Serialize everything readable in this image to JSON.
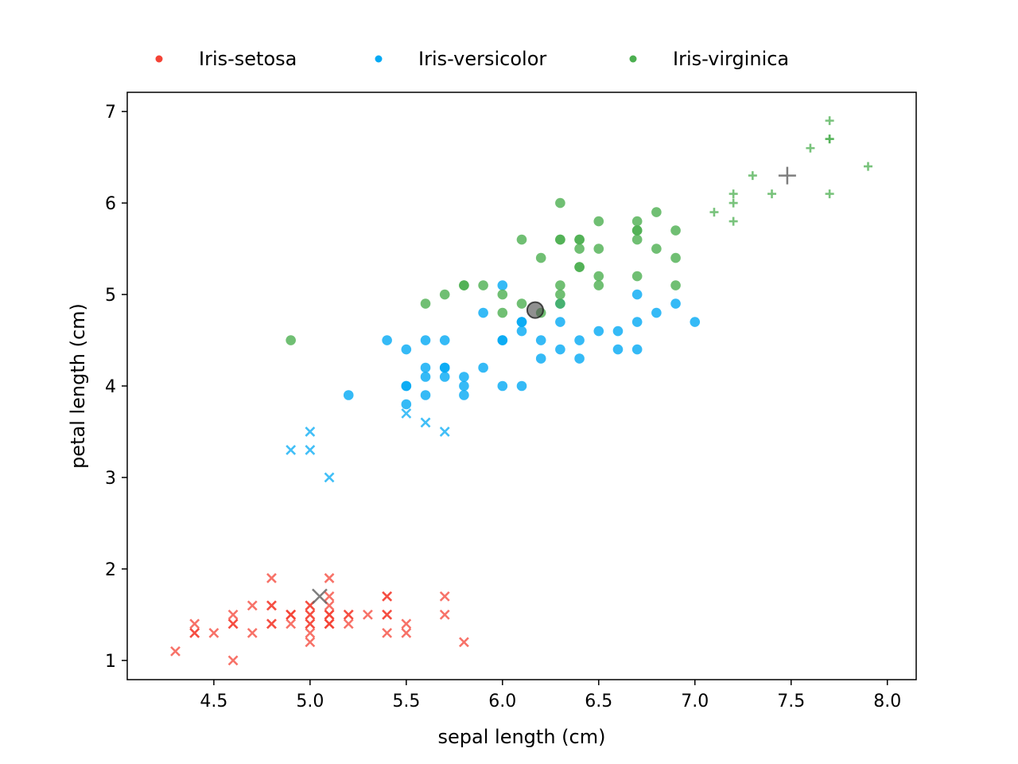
{
  "chart_data": {
    "type": "scatter",
    "xlabel": "sepal length (cm)",
    "ylabel": "petal length (cm)",
    "xlim": [
      4.05,
      8.15
    ],
    "ylim": [
      0.79,
      7.21
    ],
    "x_ticks": [
      4.5,
      5.0,
      5.5,
      6.0,
      6.5,
      7.0,
      7.5,
      8.0
    ],
    "x_tick_labels": [
      "4.5",
      "5.0",
      "5.5",
      "6.0",
      "6.5",
      "7.0",
      "7.5",
      "8.0"
    ],
    "y_ticks": [
      1,
      2,
      3,
      4,
      5,
      6,
      7
    ],
    "y_tick_labels": [
      "1",
      "2",
      "3",
      "4",
      "5",
      "6",
      "7"
    ],
    "grid": false,
    "legend_position": "top",
    "legend": [
      {
        "label": "Iris-setosa",
        "color": "#f44336"
      },
      {
        "label": "Iris-versicolor",
        "color": "#03a9f4"
      },
      {
        "label": "Iris-virginica",
        "color": "#4caf50"
      }
    ],
    "series": [
      {
        "name": "Iris-setosa",
        "color": "#f44336",
        "marker": "x",
        "points": [
          [
            4.3,
            1.1
          ],
          [
            4.4,
            1.4
          ],
          [
            4.4,
            1.3
          ],
          [
            4.4,
            1.3
          ],
          [
            4.5,
            1.3
          ],
          [
            4.6,
            1.0
          ],
          [
            4.6,
            1.4
          ],
          [
            4.6,
            1.5
          ],
          [
            4.6,
            1.4
          ],
          [
            4.7,
            1.6
          ],
          [
            4.7,
            1.3
          ],
          [
            4.8,
            1.9
          ],
          [
            4.8,
            1.6
          ],
          [
            4.8,
            1.4
          ],
          [
            4.8,
            1.6
          ],
          [
            4.8,
            1.4
          ],
          [
            4.9,
            1.5
          ],
          [
            4.9,
            1.4
          ],
          [
            4.9,
            1.5
          ],
          [
            4.9,
            1.5
          ],
          [
            5.0,
            1.6
          ],
          [
            5.0,
            1.5
          ],
          [
            5.0,
            1.4
          ],
          [
            5.0,
            1.3
          ],
          [
            5.0,
            1.2
          ],
          [
            5.0,
            1.6
          ],
          [
            5.0,
            1.4
          ],
          [
            5.0,
            1.5
          ],
          [
            5.1,
            1.9
          ],
          [
            5.1,
            1.7
          ],
          [
            5.1,
            1.6
          ],
          [
            5.1,
            1.5
          ],
          [
            5.1,
            1.5
          ],
          [
            5.1,
            1.4
          ],
          [
            5.1,
            1.4
          ],
          [
            5.1,
            1.5
          ],
          [
            5.1,
            1.4
          ],
          [
            5.2,
            1.5
          ],
          [
            5.2,
            1.4
          ],
          [
            5.2,
            1.5
          ],
          [
            5.3,
            1.5
          ],
          [
            5.4,
            1.7
          ],
          [
            5.4,
            1.5
          ],
          [
            5.4,
            1.3
          ],
          [
            5.4,
            1.7
          ],
          [
            5.4,
            1.5
          ],
          [
            5.5,
            1.4
          ],
          [
            5.5,
            1.3
          ],
          [
            5.7,
            1.7
          ],
          [
            5.7,
            1.5
          ],
          [
            5.8,
            1.2
          ]
        ]
      },
      {
        "name": "Iris-versicolor",
        "color": "#03a9f4",
        "marker": "mixed",
        "points_x": [
          [
            4.9,
            3.3
          ],
          [
            5.0,
            3.5
          ],
          [
            5.0,
            3.3
          ],
          [
            5.1,
            3.0
          ],
          [
            5.5,
            3.7
          ],
          [
            5.6,
            3.6
          ],
          [
            5.7,
            3.5
          ]
        ],
        "points_o": [
          [
            5.2,
            3.9
          ],
          [
            5.4,
            4.5
          ],
          [
            5.5,
            4.4
          ],
          [
            5.5,
            4.0
          ],
          [
            5.5,
            4.0
          ],
          [
            5.5,
            3.8
          ],
          [
            5.6,
            4.5
          ],
          [
            5.6,
            4.2
          ],
          [
            5.6,
            4.1
          ],
          [
            5.6,
            3.9
          ],
          [
            5.7,
            4.5
          ],
          [
            5.7,
            4.2
          ],
          [
            5.7,
            4.2
          ],
          [
            5.7,
            4.1
          ],
          [
            5.8,
            4.1
          ],
          [
            5.8,
            4.0
          ],
          [
            5.8,
            3.9
          ],
          [
            5.9,
            4.8
          ],
          [
            5.9,
            4.2
          ],
          [
            6.0,
            5.1
          ],
          [
            6.0,
            4.5
          ],
          [
            6.0,
            4.5
          ],
          [
            6.0,
            4.0
          ],
          [
            6.1,
            4.7
          ],
          [
            6.1,
            4.7
          ],
          [
            6.1,
            4.6
          ],
          [
            6.1,
            4.0
          ],
          [
            6.2,
            4.5
          ],
          [
            6.2,
            4.3
          ],
          [
            6.3,
            4.9
          ],
          [
            6.3,
            4.7
          ],
          [
            6.3,
            4.4
          ],
          [
            6.4,
            4.5
          ],
          [
            6.4,
            4.3
          ],
          [
            6.5,
            4.6
          ],
          [
            6.6,
            4.6
          ],
          [
            6.6,
            4.4
          ],
          [
            6.7,
            5.0
          ],
          [
            6.7,
            4.7
          ],
          [
            6.7,
            4.4
          ],
          [
            6.8,
            4.8
          ],
          [
            6.9,
            4.9
          ],
          [
            7.0,
            4.7
          ]
        ]
      },
      {
        "name": "Iris-virginica",
        "color": "#4caf50",
        "marker": "mixed",
        "points_o": [
          [
            4.9,
            4.5
          ],
          [
            5.6,
            4.9
          ],
          [
            5.7,
            5.0
          ],
          [
            5.8,
            5.1
          ],
          [
            5.8,
            5.1
          ],
          [
            5.9,
            5.1
          ],
          [
            6.0,
            5.0
          ],
          [
            6.0,
            4.8
          ],
          [
            6.1,
            5.6
          ],
          [
            6.1,
            4.9
          ],
          [
            6.2,
            5.4
          ],
          [
            6.2,
            4.8
          ],
          [
            6.3,
            6.0
          ],
          [
            6.3,
            5.6
          ],
          [
            6.3,
            5.6
          ],
          [
            6.3,
            5.1
          ],
          [
            6.3,
            5.0
          ],
          [
            6.3,
            4.9
          ],
          [
            6.4,
            5.6
          ],
          [
            6.4,
            5.6
          ],
          [
            6.4,
            5.5
          ],
          [
            6.4,
            5.3
          ],
          [
            6.4,
            5.3
          ],
          [
            6.5,
            5.8
          ],
          [
            6.5,
            5.5
          ],
          [
            6.5,
            5.2
          ],
          [
            6.5,
            5.1
          ],
          [
            6.7,
            5.8
          ],
          [
            6.7,
            5.7
          ],
          [
            6.7,
            5.7
          ],
          [
            6.7,
            5.6
          ],
          [
            6.7,
            5.2
          ],
          [
            6.8,
            5.9
          ],
          [
            6.8,
            5.5
          ],
          [
            6.9,
            5.7
          ],
          [
            6.9,
            5.4
          ],
          [
            6.9,
            5.1
          ]
        ],
        "points_plus": [
          [
            7.1,
            5.9
          ],
          [
            7.2,
            6.1
          ],
          [
            7.2,
            6.0
          ],
          [
            7.2,
            5.8
          ],
          [
            7.3,
            6.3
          ],
          [
            7.4,
            6.1
          ],
          [
            7.6,
            6.6
          ],
          [
            7.7,
            6.9
          ],
          [
            7.7,
            6.7
          ],
          [
            7.7,
            6.7
          ],
          [
            7.7,
            6.1
          ],
          [
            7.9,
            6.4
          ]
        ]
      }
    ],
    "highlights": [
      {
        "marker": "x",
        "x": 5.05,
        "y": 1.7,
        "color": "#666666"
      },
      {
        "marker": "o",
        "x": 6.17,
        "y": 4.83,
        "color": "#555555"
      },
      {
        "marker": "plus",
        "x": 7.48,
        "y": 6.3,
        "color": "#777777"
      }
    ]
  }
}
